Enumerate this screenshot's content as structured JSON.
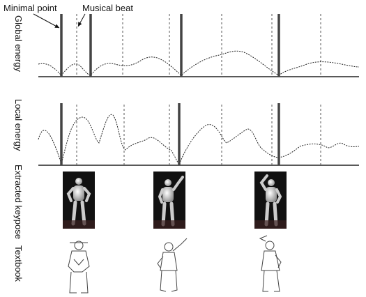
{
  "labels": {
    "minimal_point": "Minimal point",
    "musical_beat": "Musical beat"
  },
  "rows": [
    "Global energy",
    "Local energy",
    "Extracted keypose",
    "Textbook"
  ]
}
